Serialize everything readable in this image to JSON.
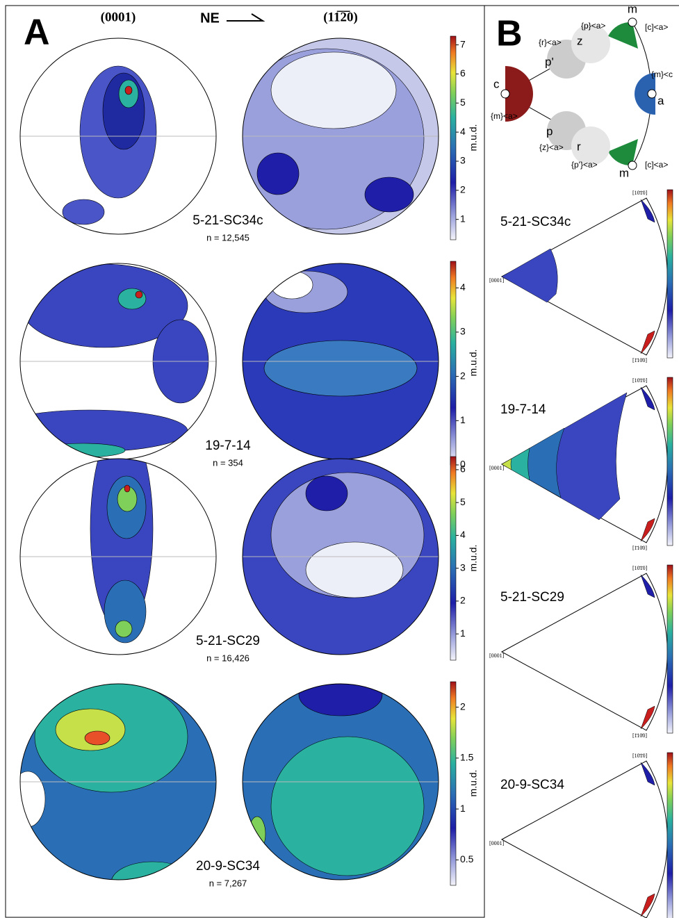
{
  "panel_a": {
    "label": "A",
    "columns": [
      "(0001)",
      "(11̅2̅0)"
    ],
    "direction": "NE",
    "rows": [
      {
        "sample": "5-21-SC34c",
        "n": "n = 12,545",
        "colorbar": {
          "label": "m.u.d.",
          "lim": [
            0.3,
            7.3
          ],
          "ticks": [
            1,
            2,
            3,
            4,
            5,
            6,
            7
          ]
        }
      },
      {
        "sample": "19-7-14",
        "n": "n = 354",
        "colorbar": {
          "label": "m.u.d.",
          "lim": [
            0,
            4.6
          ],
          "ticks": [
            0,
            1,
            2,
            3,
            4
          ]
        }
      },
      {
        "sample": "5-21-SC29",
        "n": "n = 16,426",
        "colorbar": {
          "label": "m.u.d.",
          "lim": [
            0.2,
            6.4
          ],
          "ticks": [
            1,
            2,
            3,
            4,
            5,
            6
          ]
        }
      },
      {
        "sample": "20-9-SC34",
        "n": "n = 7,267",
        "colorbar": {
          "label": "m.u.d.",
          "lim": [
            0.25,
            2.25
          ],
          "ticks": [
            0.5,
            1,
            1.5,
            2
          ]
        }
      }
    ]
  },
  "panel_b": {
    "label": "B",
    "key": {
      "m_top": "m",
      "c_a_top": "[c]<a>",
      "p_a": "{p}<a>",
      "z": "z",
      "r_a": "{r}<a>",
      "p_prime": "p'",
      "c": "c",
      "m_a": "{m}<a>",
      "a": "a",
      "m_c": "{m}<c",
      "p": "p",
      "z_a": "{z}<a>",
      "r": "r",
      "p_prime_a": "{p'}<a>",
      "m_bottom": "m",
      "c_a_bottom": "[c]<a>"
    },
    "corners": {
      "apex": "[0001]",
      "top": "[10̄1̄0]",
      "bottom": "[1̄10̄0]"
    },
    "rows": [
      {
        "sample": "5-21-SC34c"
      },
      {
        "sample": "19-7-14"
      },
      {
        "sample": "5-21-SC29"
      },
      {
        "sample": "20-9-SC34"
      }
    ]
  }
}
